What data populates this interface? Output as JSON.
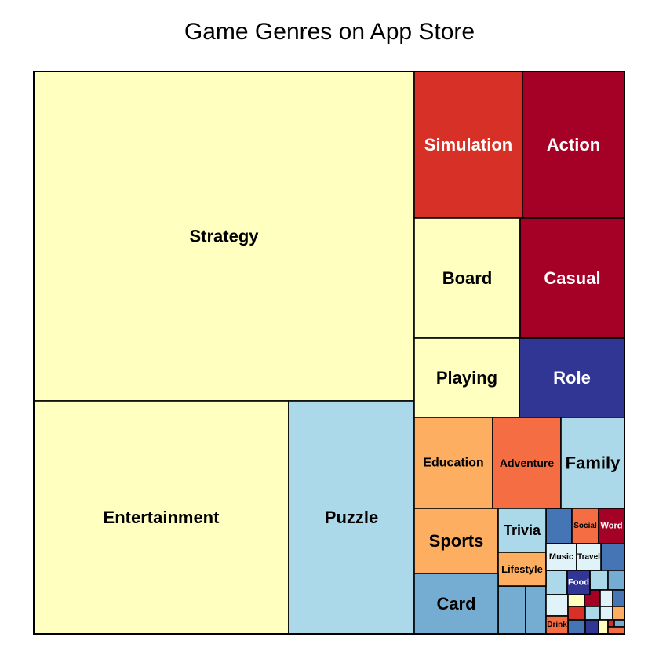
{
  "chart_data": {
    "type": "treemap",
    "title": "Game Genres on App Store",
    "colors": {
      "light_yellow": "#FFFFBF",
      "light_blue": "#ABD9E9",
      "red": "#D73027",
      "dark_red": "#A50026",
      "navy": "#313695",
      "light_orange": "#FDAE61",
      "orange": "#F46D43",
      "mid_blue": "#74ADD1",
      "blue": "#4575B4",
      "pale_blue": "#E0F3F8",
      "border": "#000000"
    },
    "items": [
      {
        "label": "Strategy",
        "color": "#FFFFBF",
        "text_color": "#000000"
      },
      {
        "label": "Entertainment",
        "color": "#FFFFBF",
        "text_color": "#000000"
      },
      {
        "label": "Puzzle",
        "color": "#ABD9E9",
        "text_color": "#000000"
      },
      {
        "label": "Simulation",
        "color": "#D73027",
        "text_color": "#FFFFFF"
      },
      {
        "label": "Action",
        "color": "#A50026",
        "text_color": "#FFFFFF"
      },
      {
        "label": "Board",
        "color": "#FFFFBF",
        "text_color": "#000000"
      },
      {
        "label": "Casual",
        "color": "#A50026",
        "text_color": "#FFFFFF"
      },
      {
        "label": "Playing",
        "color": "#FFFFBF",
        "text_color": "#000000"
      },
      {
        "label": "Role",
        "color": "#313695",
        "text_color": "#FFFFFF"
      },
      {
        "label": "Education",
        "color": "#FDAE61",
        "text_color": "#000000"
      },
      {
        "label": "Adventure",
        "color": "#F46D43",
        "text_color": "#000000"
      },
      {
        "label": "Family",
        "color": "#ABD9E9",
        "text_color": "#000000"
      },
      {
        "label": "Sports",
        "color": "#FDAE61",
        "text_color": "#000000"
      },
      {
        "label": "Trivia",
        "color": "#ABD9E9",
        "text_color": "#000000"
      },
      {
        "label": "Lifestyle",
        "color": "#FDAE61",
        "text_color": "#000000"
      },
      {
        "label": "Card",
        "color": "#74ADD1",
        "text_color": "#000000"
      },
      {
        "label": "Social",
        "color": "#F46D43",
        "text_color": "#000000"
      },
      {
        "label": "Word",
        "color": "#A50026",
        "text_color": "#FFFFFF"
      },
      {
        "label": "Music",
        "color": "#E0F3F8",
        "text_color": "#000000"
      },
      {
        "label": "Travel",
        "color": "#E0F3F8",
        "text_color": "#000000"
      },
      {
        "label": "Food",
        "color": "#313695",
        "text_color": "#FFFFFF"
      },
      {
        "label": "Drink",
        "color": "#F46D43",
        "text_color": "#000000"
      }
    ],
    "unlabeled_tile_colors": [
      "#74ADD1",
      "#74ADD1",
      "#4575B4",
      "#4575B4",
      "#ABD9E9",
      "#74ADD1",
      "#ABD9E9",
      "#E0F3F8",
      "#FFFFBF",
      "#A50026",
      "#E0F3F8",
      "#4575B4",
      "#D73027",
      "#ABD9E9",
      "#E0F3F8",
      "#FDAE61",
      "#4575B4",
      "#313695",
      "#FFFFBF",
      "#D73027",
      "#74ADD1",
      "#F46D43"
    ]
  }
}
